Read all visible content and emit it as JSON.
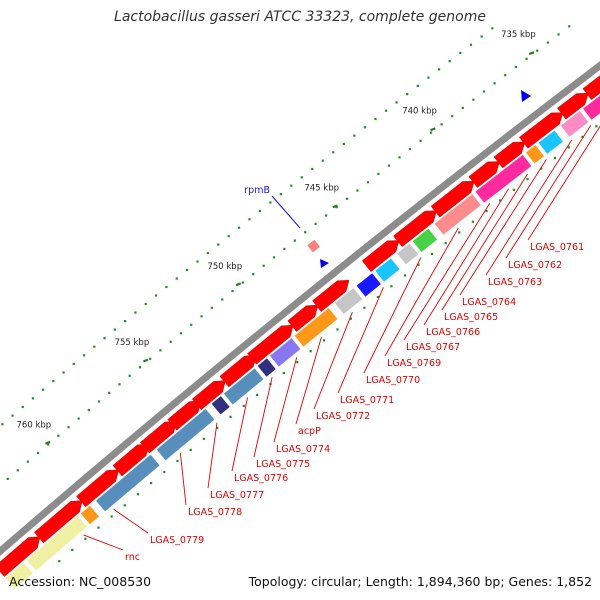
{
  "title": "Lactobacillus gasseri ATCC 33323, complete genome",
  "accession": "Accession: NC_008530",
  "summary": "Topology: circular; Length: 1,894,360 bp; Genes: 1,852",
  "colors": {
    "backbone": "#8c8c8c",
    "cds_forward": "#ff0000",
    "tick_major": "#2a7a2a",
    "tick_minor": "#1f8f1f",
    "tick_label": "#222222",
    "gene_label": "#e00000",
    "rpmB_label": "#1a1adb",
    "arrow_blue": "#0000ee"
  },
  "scale_labels": [
    "735 kbp",
    "740 kbp",
    "745 kbp",
    "750 kbp",
    "755 kbp",
    "760 kbp"
  ],
  "gene_labels": [
    "LGAS_0761",
    "LGAS_0762",
    "LGAS_0763",
    "LGAS_0764",
    "LGAS_0765",
    "LGAS_0766",
    "LGAS_0767",
    "LGAS_0769",
    "LGAS_0770",
    "LGAS_0771",
    "LGAS_0772",
    "acpP",
    "LGAS_0774",
    "LGAS_0775",
    "LGAS_0776",
    "LGAS_0777",
    "LGAS_0778",
    "LGAS_0779",
    "rnc"
  ],
  "rpmB_label": "rpmB",
  "cog_colors": [
    "#ff8080",
    "#ff1493",
    "#ff80c0",
    "#33cc33",
    "#0000ff",
    "#00bfff",
    "#c0c0c0",
    "#ff8c00",
    "#7b68ee",
    "#191970",
    "#4682b4",
    "#eeee99",
    "#66ff00",
    "#696969"
  ]
}
